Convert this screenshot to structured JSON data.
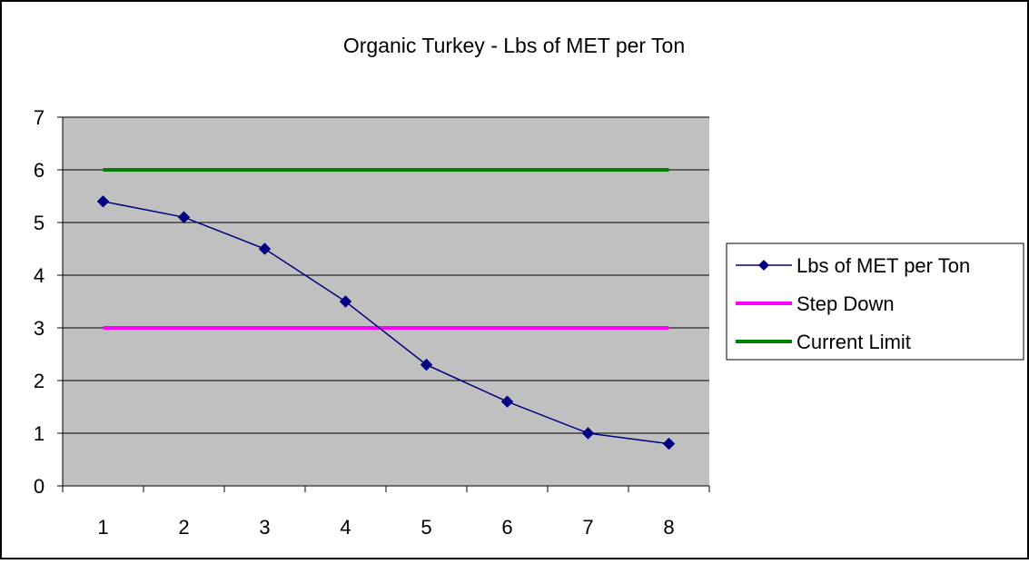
{
  "chart_data": {
    "type": "line",
    "title": "Organic Turkey - Lbs of MET per Ton",
    "xlabel": "",
    "ylabel": "",
    "categories": [
      "1",
      "2",
      "3",
      "4",
      "5",
      "6",
      "7",
      "8"
    ],
    "ylim": [
      0,
      7
    ],
    "y_ticks": [
      "0",
      "1",
      "2",
      "3",
      "4",
      "5",
      "6",
      "7"
    ],
    "grid": true,
    "legend_position": "right",
    "plot_background": "#c0c0c0",
    "series": [
      {
        "name": "Lbs of MET per Ton",
        "values": [
          5.4,
          5.1,
          4.5,
          3.5,
          2.3,
          1.6,
          1.0,
          0.8
        ],
        "color": "#000080",
        "marker": "diamond"
      },
      {
        "name": "Step Down",
        "values": [
          3,
          3,
          3,
          3,
          3,
          3,
          3,
          3
        ],
        "color": "#ff00ff",
        "marker": "none"
      },
      {
        "name": "Current Limit",
        "values": [
          6,
          6,
          6,
          6,
          6,
          6,
          6,
          6
        ],
        "color": "#008000",
        "marker": "none"
      }
    ]
  }
}
